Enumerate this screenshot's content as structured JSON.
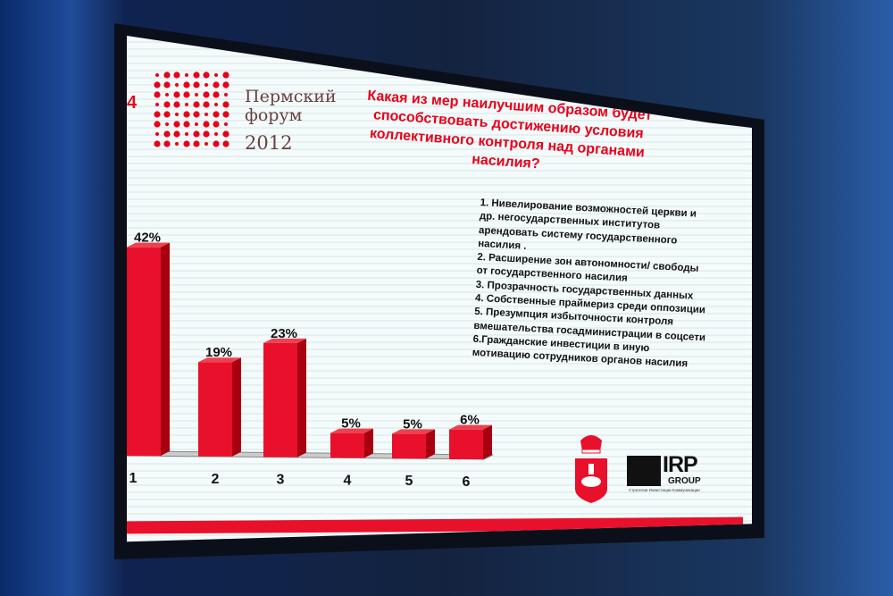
{
  "slide": {
    "number": "4",
    "logo": {
      "line1": "Пермский",
      "line2": "форум",
      "year": "2012"
    },
    "title": "Какая из мер наилучшим образом будет способствовать достижению условия коллективного контроля над органами насилия?",
    "legend": [
      "1. Нивелирование возможностей церкви и др. негосударственных институтов арендовать систему государственного насилия .",
      "2. Расширение зон автономности/ свободы от государственного насилия",
      "3. Прозрачность государственных данных",
      "4. Собственные праймериз среди оппозиции",
      "5. Презумпция избыточности контроля вмешательства госадминистрации в соцсети",
      "6.Гражданские инвестиции в иную мотивацию сотрудников органов насилия"
    ],
    "sponsor": {
      "name": "IRP",
      "group": "GROUP",
      "tagline": "Стратегии Инвестиции Коммуникации"
    },
    "colors": {
      "accent": "#e8001a",
      "bar": "#e8102a",
      "bar_side": "#a80010"
    }
  },
  "chart_data": {
    "type": "bar",
    "categories": [
      "1",
      "2",
      "3",
      "4",
      "5",
      "6"
    ],
    "values": [
      42,
      19,
      23,
      5,
      5,
      6
    ],
    "data_labels": [
      "42%",
      "19%",
      "23%",
      "5%",
      "5%",
      "6%"
    ],
    "ylim": [
      0,
      45
    ],
    "grid": false,
    "style": "3d"
  }
}
